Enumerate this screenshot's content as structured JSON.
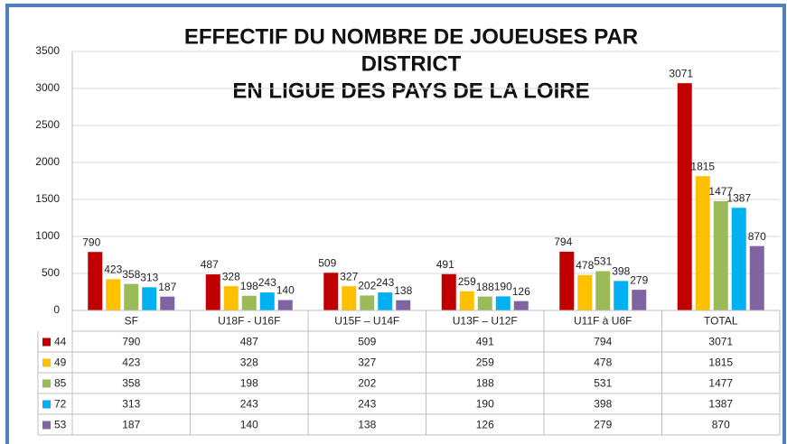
{
  "chart_data": {
    "type": "bar",
    "title": [
      "EFFECTIF DU NOMBRE DE JOUEUSES PAR",
      "DISTRICT",
      "EN LIGUE DES PAYS DE LA LOIRE"
    ],
    "categories": [
      "SF",
      "U18F - U16F",
      "U15F – U14F",
      "U13F – U12F",
      "U11F à U6F",
      "TOTAL"
    ],
    "series": [
      {
        "name": "44",
        "color": "#c00000",
        "values": [
          790,
          487,
          509,
          491,
          794,
          3071
        ]
      },
      {
        "name": "49",
        "color": "#ffc000",
        "values": [
          423,
          328,
          327,
          259,
          478,
          1815
        ]
      },
      {
        "name": "85",
        "color": "#9bbb59",
        "values": [
          358,
          198,
          202,
          188,
          531,
          1477
        ]
      },
      {
        "name": "72",
        "color": "#00b0f0",
        "values": [
          313,
          243,
          243,
          190,
          398,
          1387
        ]
      },
      {
        "name": "53",
        "color": "#8064a2",
        "values": [
          187,
          140,
          138,
          126,
          279,
          870
        ]
      }
    ],
    "ylim": [
      0,
      3500
    ],
    "yticks": [
      0,
      500,
      1000,
      1500,
      2000,
      2500,
      3000,
      3500
    ],
    "grid": true
  }
}
